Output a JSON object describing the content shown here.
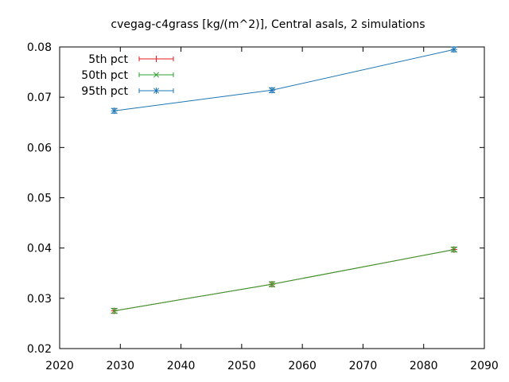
{
  "chart_data": {
    "type": "line",
    "title": "cvegag-c4grass [kg/(m^2)], Central asals, 2 simulations",
    "xlabel": "",
    "ylabel": "",
    "xlim": [
      2020,
      2090
    ],
    "ylim": [
      0.02,
      0.08
    ],
    "x_ticks": [
      2020,
      2030,
      2040,
      2050,
      2060,
      2070,
      2080,
      2090
    ],
    "y_ticks": [
      0.02,
      0.03,
      0.04,
      0.05,
      0.06,
      0.07,
      0.08
    ],
    "x": [
      2029,
      2055,
      2085
    ],
    "grid": false,
    "legend_position": "top-left",
    "series": [
      {
        "name": "5th pct",
        "color": "#e41a1c",
        "marker": "plus",
        "values": [
          0.0275,
          0.0328,
          0.0397
        ]
      },
      {
        "name": "50th pct",
        "color": "#2ca02c",
        "marker": "cross",
        "values": [
          0.0275,
          0.0328,
          0.0397
        ]
      },
      {
        "name": "95th pct",
        "color": "#1f77b4",
        "marker": "star",
        "values": [
          0.0673,
          0.0714,
          0.0795
        ]
      }
    ]
  }
}
